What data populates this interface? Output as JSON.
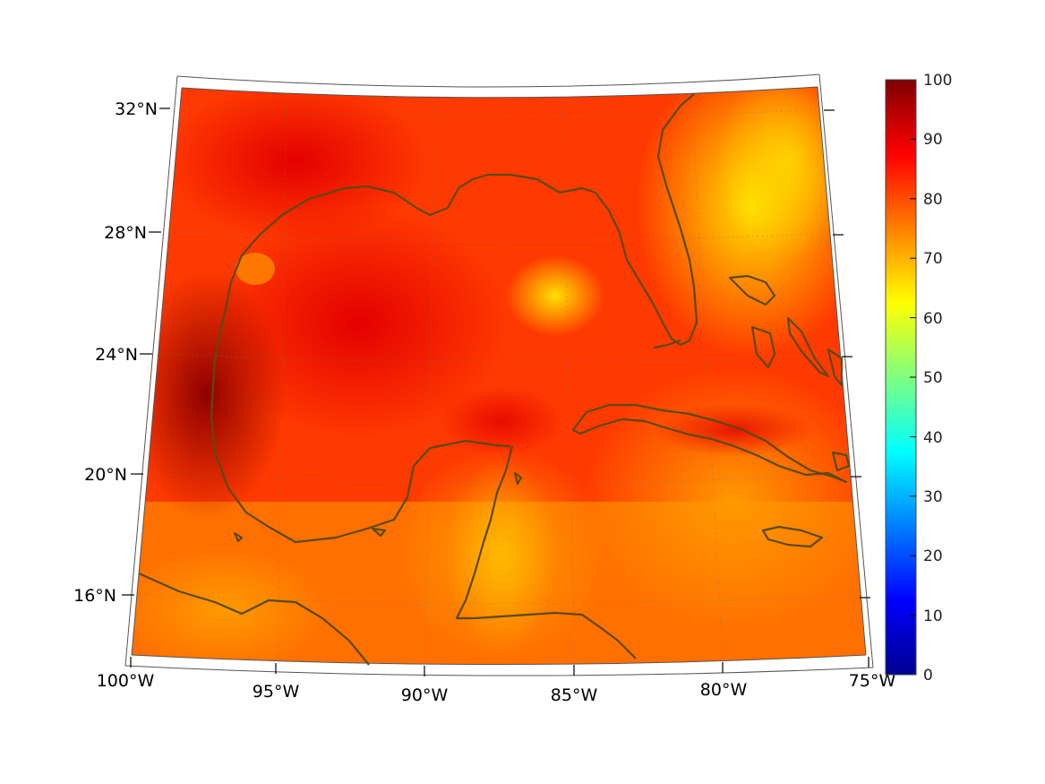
{
  "map": {
    "lon_ticks": [
      "100°W",
      "95°W",
      "90°W",
      "85°W",
      "80°W",
      "75°W"
    ],
    "lat_ticks": [
      "32°N",
      "28°N",
      "24°N",
      "20°N",
      "16°N"
    ],
    "lon_range": [
      -100,
      -75
    ],
    "lat_range": [
      14,
      33
    ],
    "colormap": "jet",
    "coastline_color": "#5a4a14",
    "graticule": "dotted"
  },
  "colorbar": {
    "ticks": [
      "100",
      "90",
      "80",
      "70",
      "60",
      "50",
      "40",
      "30",
      "20",
      "10",
      "0"
    ],
    "range": [
      0,
      100
    ],
    "colors": [
      "#7f0000",
      "#ff0000",
      "#ff8000",
      "#ffff00",
      "#80ff80",
      "#00ffff",
      "#0080ff",
      "#0000ff",
      "#00008f"
    ]
  }
}
